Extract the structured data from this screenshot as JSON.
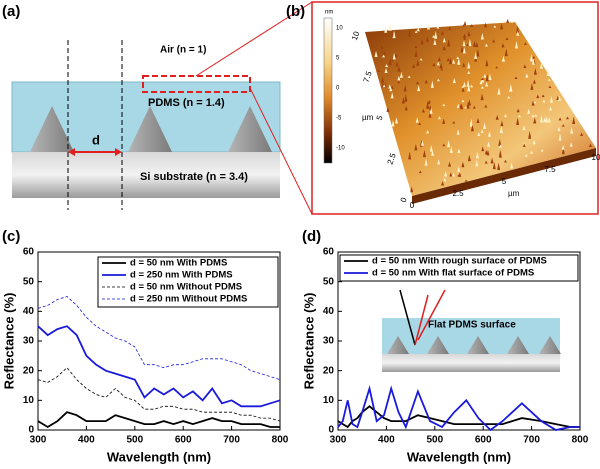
{
  "panel_labels": [
    "(a)",
    "(b)",
    "(c)",
    "(d)"
  ],
  "schematic": {
    "air": "Air (n = 1)",
    "pdms": "PDMS (n = 1.4)",
    "d": "d",
    "substrate": "Si substrate (n = 3.4)"
  },
  "afm": {
    "colorbar_unit": "nm",
    "colorbar_ticks": [
      "10",
      "5",
      "0",
      "-5",
      "-10"
    ],
    "x_ticks": [
      "0",
      "2.5",
      "5",
      "7.5",
      "10"
    ],
    "x_unit": "µm",
    "y_ticks": [
      "0",
      "2.5",
      "5",
      "7.5",
      "10"
    ],
    "y_unit": "µm"
  },
  "chart_data": [
    {
      "type": "line",
      "xlabel": "Wavelength (nm)",
      "ylabel": "Reflectance (%)",
      "xlim": [
        300,
        800
      ],
      "ylim": [
        0,
        60
      ],
      "xticks": [
        300,
        400,
        500,
        600,
        700,
        800
      ],
      "yticks": [
        0,
        10,
        20,
        30,
        40,
        50,
        60
      ],
      "x": [
        300,
        320,
        340,
        360,
        380,
        400,
        420,
        440,
        460,
        480,
        500,
        520,
        540,
        560,
        580,
        600,
        620,
        640,
        660,
        680,
        700,
        720,
        740,
        760,
        780,
        800
      ],
      "series": [
        {
          "name": "d = 50 nm With PDMS",
          "color": "#000000",
          "linestyle": "solid",
          "values": [
            3,
            1,
            3,
            6,
            5,
            3,
            3,
            3,
            5,
            4,
            3,
            2,
            2,
            3,
            2,
            3,
            2,
            3,
            4,
            3,
            3,
            2,
            2,
            2,
            1,
            1
          ]
        },
        {
          "name": "d = 250 nm With PDMS",
          "color": "#1a1adc",
          "linestyle": "solid",
          "values": [
            35,
            32,
            34,
            35,
            32,
            25,
            22,
            20,
            19,
            18,
            17,
            11,
            14,
            12,
            14,
            11,
            13,
            10,
            14,
            9,
            10,
            8,
            8,
            8,
            9,
            10
          ]
        },
        {
          "name": "d = 50 nm Without PDMS",
          "color": "#000000",
          "linestyle": "dashed",
          "values": [
            17,
            16,
            18,
            21,
            17,
            14,
            12,
            11,
            14,
            11,
            10,
            7,
            7,
            8,
            8,
            7,
            7,
            6,
            6,
            6,
            6,
            5,
            5,
            4,
            4,
            3
          ]
        },
        {
          "name": "d = 250 nm Without PDMS",
          "color": "#1a1adc",
          "linestyle": "dashed",
          "values": [
            41,
            42,
            44,
            45,
            42,
            38,
            35,
            33,
            31,
            30,
            28,
            22,
            22,
            21,
            22,
            22,
            23,
            24,
            24,
            24,
            23,
            22,
            20,
            19,
            18,
            17
          ]
        }
      ]
    },
    {
      "type": "line",
      "xlabel": "Wavelength (nm)",
      "ylabel": "Reflectance (%)",
      "inset_label": "Flat PDMS surface",
      "xlim": [
        300,
        800
      ],
      "ylim": [
        0,
        60
      ],
      "xticks": [
        300,
        400,
        500,
        600,
        700,
        800
      ],
      "yticks": [
        0,
        10,
        20,
        30,
        40,
        50,
        60
      ],
      "x": [
        300,
        310,
        320,
        330,
        340,
        350,
        365,
        380,
        395,
        410,
        425,
        440,
        465,
        490,
        515,
        540,
        565,
        590,
        615,
        640,
        680,
        720,
        750,
        780,
        800
      ],
      "series": [
        {
          "name": "d = 50 nm With rough surface of PDMS",
          "color": "#000000",
          "linestyle": "solid",
          "values": [
            3,
            2,
            1,
            3,
            4,
            6,
            8,
            6,
            4,
            3,
            3,
            3,
            5,
            4,
            3,
            2,
            2,
            2,
            2,
            2,
            4,
            3,
            2,
            1,
            1
          ]
        },
        {
          "name": "d = 50 nm With flat surface of PDMS",
          "color": "#1a1adc",
          "linestyle": "solid",
          "values": [
            1,
            3,
            10,
            2,
            1,
            6,
            14,
            3,
            5,
            14,
            6,
            1,
            13,
            3,
            1,
            6,
            10,
            4,
            0,
            3,
            9,
            3,
            0,
            1,
            1
          ]
        }
      ]
    }
  ]
}
